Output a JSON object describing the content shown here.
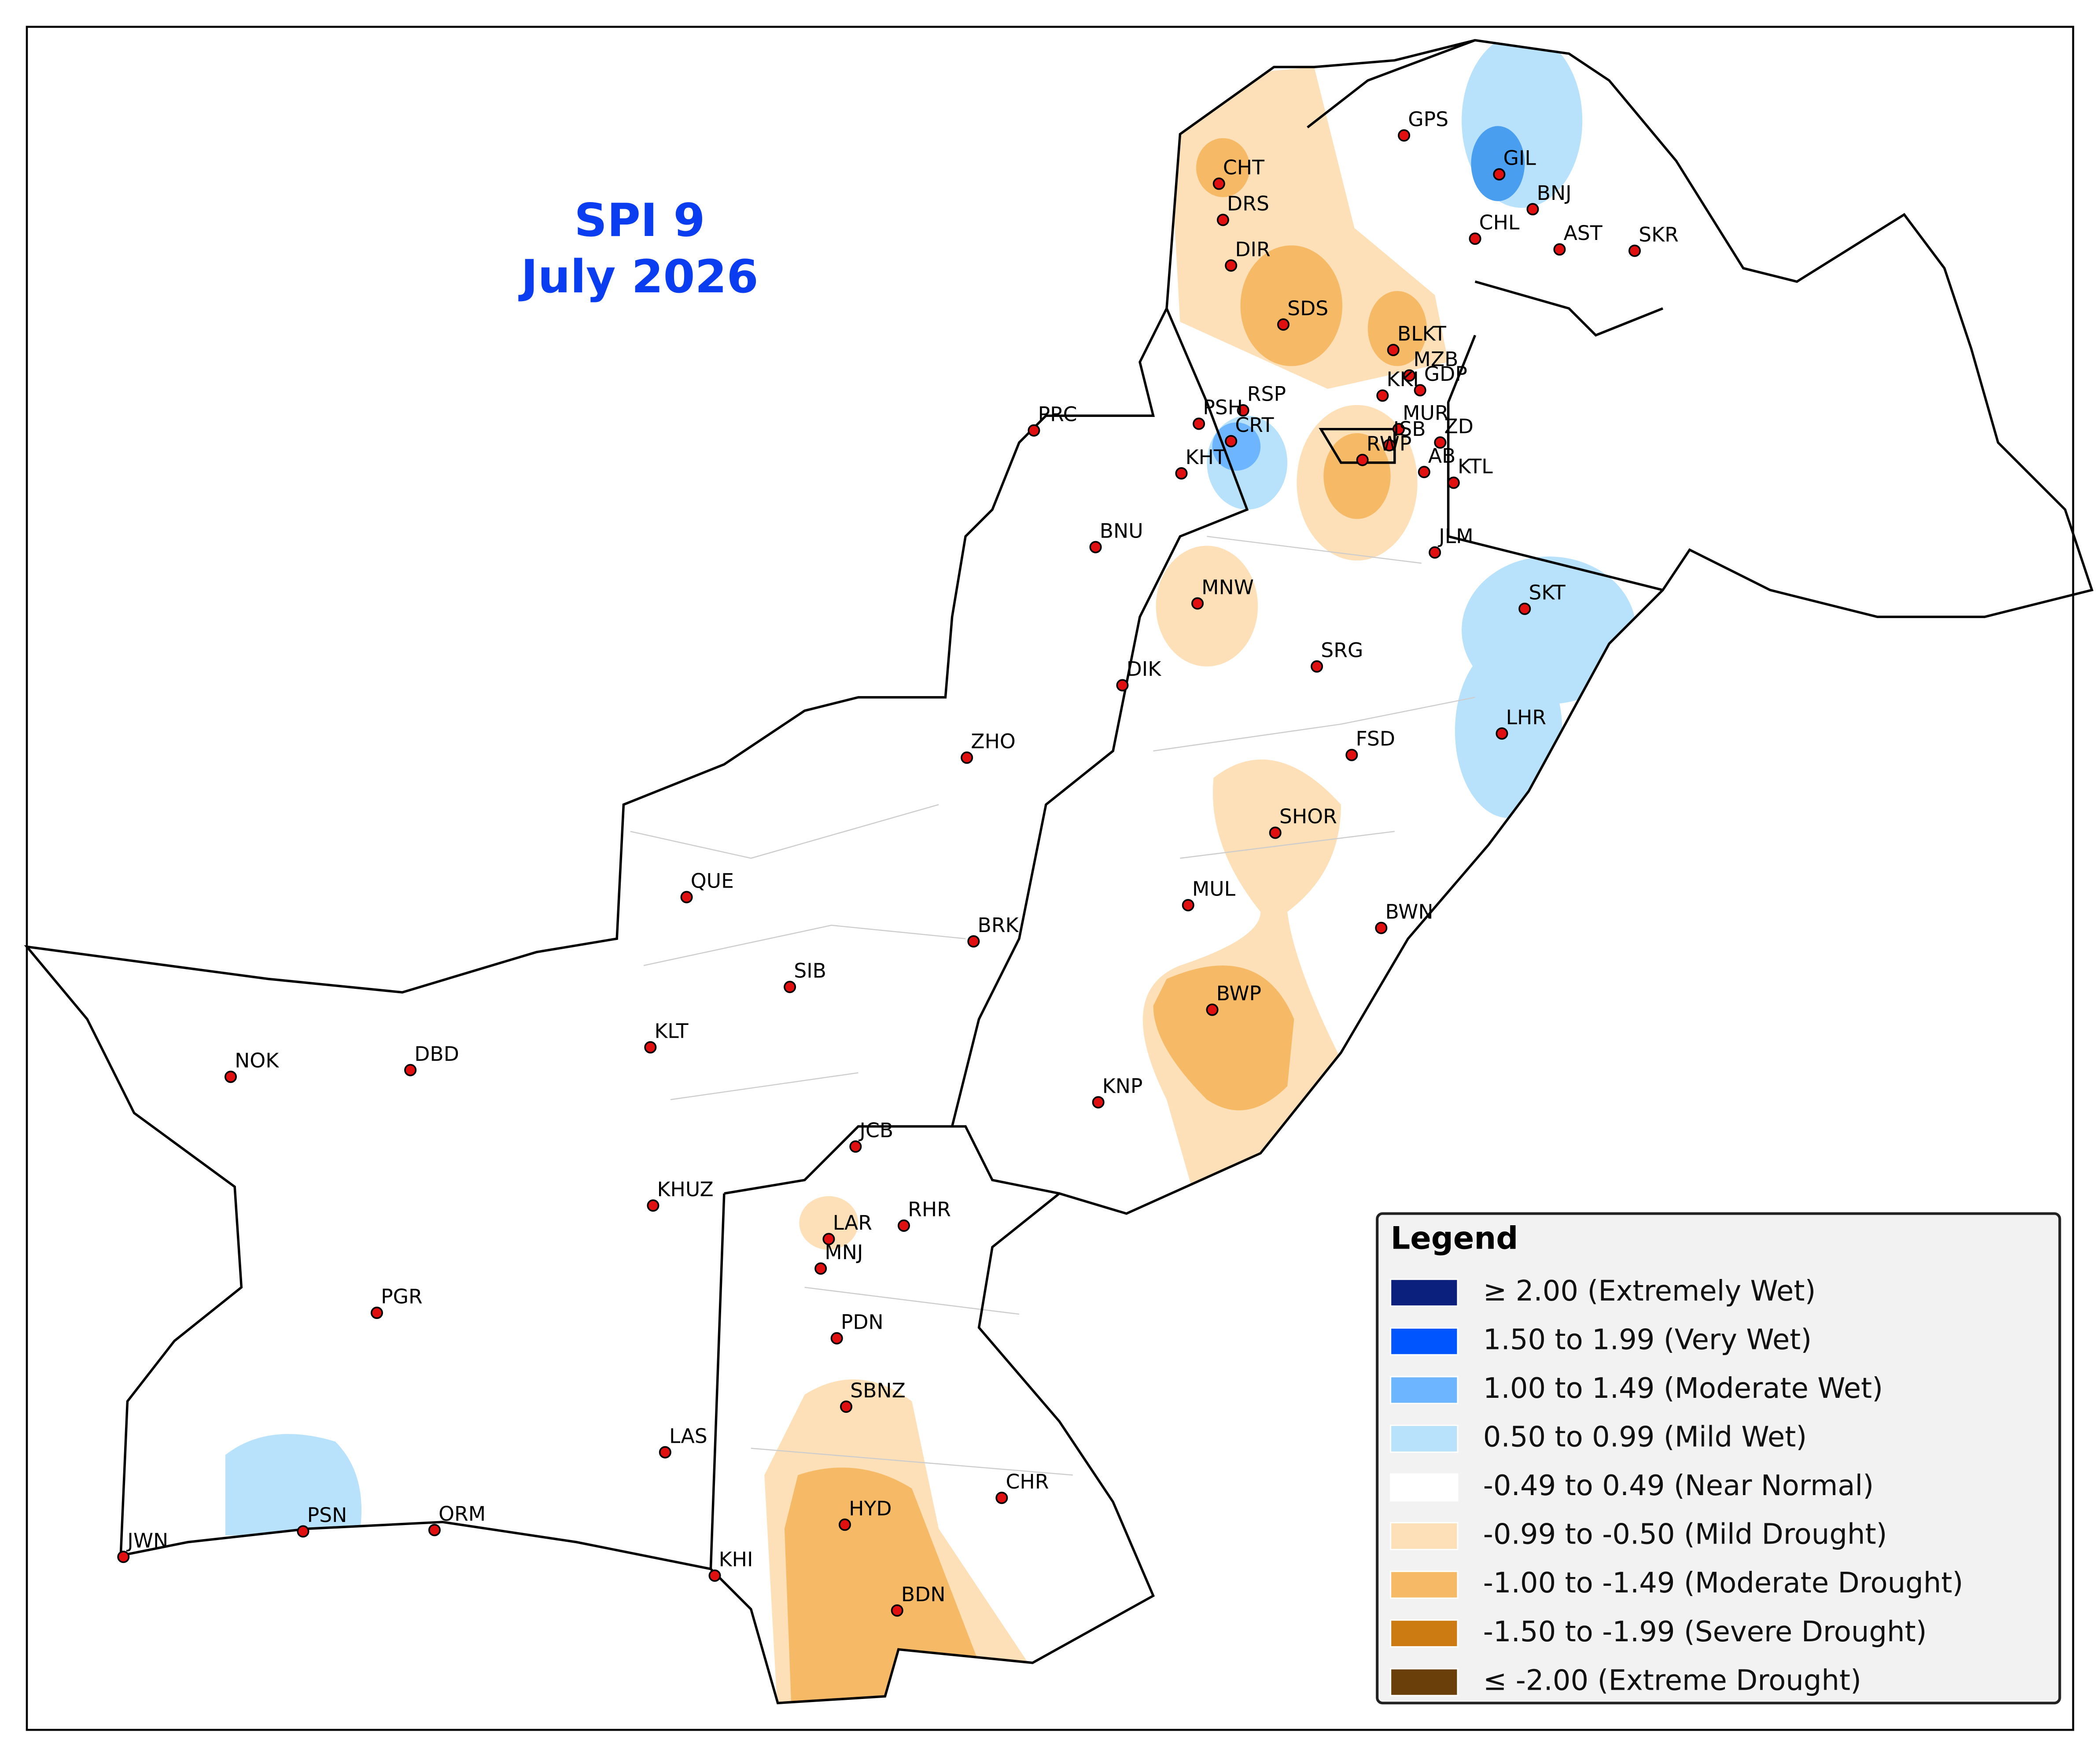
{
  "title": "SPI 9",
  "subtitle": "July 2026",
  "stations": [
    "GPS",
    "GIL",
    "BNJ",
    "CHL",
    "AST",
    "SKR",
    "CHT",
    "DRS",
    "DIR",
    "SDS",
    "BLKT",
    "MZB",
    "KKI",
    "GDP",
    "RSP",
    "PRC",
    "PSH",
    "MUR",
    "CRT",
    "ISB",
    "ZD",
    "KHT",
    "RWP",
    "AB",
    "KTL",
    "JLM",
    "BNU",
    "MNW",
    "SKT",
    "SRG",
    "DIK",
    "LHR",
    "FSD",
    "ZHO",
    "SHOR",
    "QUE",
    "MUL",
    "BWN",
    "BRK",
    "SIB",
    "BWP",
    "KLT",
    "NOK",
    "DBD",
    "KNP",
    "JCB",
    "KHUZ",
    "RHR",
    "LAR",
    "MNJ",
    "PGR",
    "PDN",
    "SBNZ",
    "LAS",
    "CHR",
    "HYD",
    "PSN",
    "ORM",
    "JWN",
    "KHI",
    "BDN"
  ],
  "legend": {
    "title": "Legend",
    "items": [
      {
        "label": "≥ 2.00 (Extremely Wet)",
        "color": "#0b1f7c"
      },
      {
        "label": "1.50 to 1.99 (Very Wet)",
        "color": "#0055ff"
      },
      {
        "label": "1.00 to 1.49 (Moderate Wet)",
        "color": "#6db6ff"
      },
      {
        "label": "0.50 to 0.99 (Mild Wet)",
        "color": "#b8e2fb"
      },
      {
        "label": "-0.49 to 0.49 (Near Normal)",
        "color": "#ffffff"
      },
      {
        "label": "-0.99 to -0.50 (Mild Drought)",
        "color": "#fde0b8"
      },
      {
        "label": "-1.00 to -1.49 (Moderate Drought)",
        "color": "#f6b965"
      },
      {
        "label": "-1.50 to -1.99 (Severe Drought)",
        "color": "#cc7a12"
      },
      {
        "label": "≤ -2.00 (Extreme Drought)",
        "color": "#6b3f0a"
      }
    ]
  }
}
